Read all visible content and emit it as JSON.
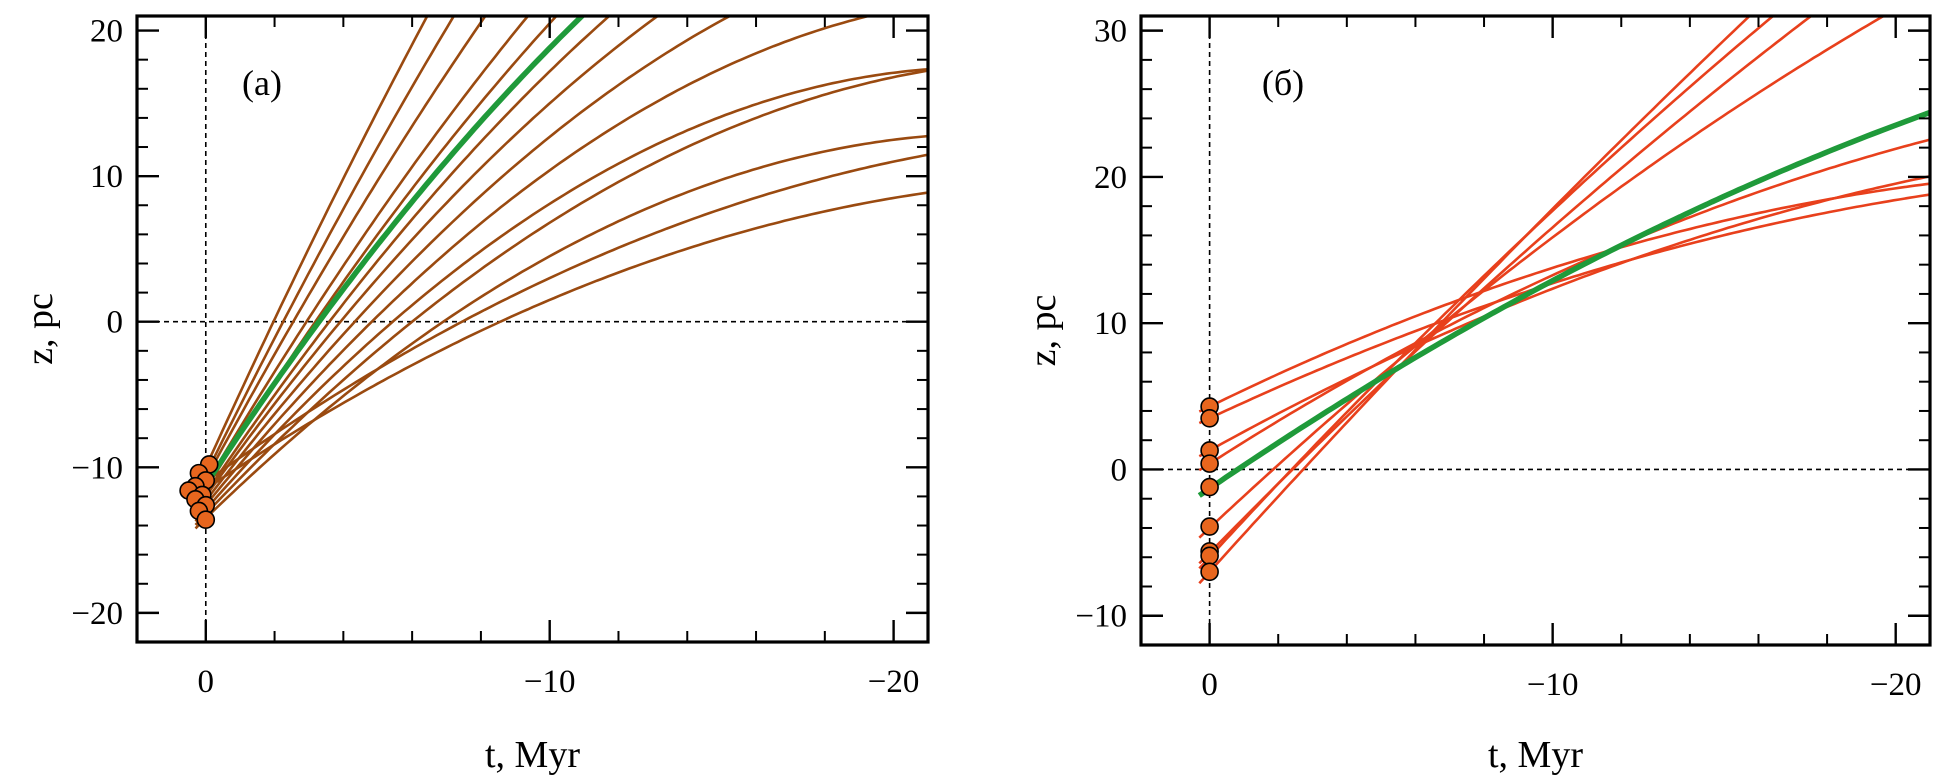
{
  "chart_data": [
    {
      "type": "line",
      "panel_label": "(а)",
      "xlabel": "t, Myr",
      "ylabel": "z, pc",
      "xlim": [
        2,
        -21
      ],
      "ylim": [
        -22,
        21
      ],
      "x_ticks": [
        0,
        -10,
        -20
      ],
      "x_tick_labels": [
        "0",
        "−10",
        "−20"
      ],
      "y_ticks": [
        -20,
        -10,
        0,
        10,
        20
      ],
      "y_tick_labels": [
        "−20",
        "−10",
        "0",
        "10",
        "20"
      ],
      "reference_lines": {
        "x": 0,
        "y": 0
      },
      "colors": {
        "tracks": "#9a4a10",
        "highlight": "#1f9a3a",
        "points": "#e8661e"
      },
      "highlight": {
        "z0": -11.2,
        "slope": 3.6,
        "curv": 0.06
      },
      "tracks": [
        {
          "z0": -10.0,
          "slope": 5.2,
          "curv": 0.06
        },
        {
          "z0": -10.5,
          "slope": 4.8,
          "curv": 0.06
        },
        {
          "z0": -10.8,
          "slope": 4.4,
          "curv": 0.06
        },
        {
          "z0": -11.2,
          "slope": 4.0,
          "curv": 0.06
        },
        {
          "z0": -11.5,
          "slope": 3.8,
          "curv": 0.06
        },
        {
          "z0": -11.8,
          "slope": 3.5,
          "curv": 0.06
        },
        {
          "z0": -12.0,
          "slope": 3.3,
          "curv": 0.06
        },
        {
          "z0": -12.3,
          "slope": 3.1,
          "curv": 0.06
        },
        {
          "z0": -12.6,
          "slope": 2.9,
          "curv": 0.06
        },
        {
          "z0": -12.9,
          "slope": 2.7,
          "curv": 0.06
        },
        {
          "z0": -13.2,
          "slope": 2.5,
          "curv": 0.05
        },
        {
          "z0": -13.5,
          "slope": 2.3,
          "curv": 0.05
        },
        {
          "z0": -11.0,
          "slope": 1.7,
          "curv": 0.03
        },
        {
          "z0": -11.5,
          "slope": 1.6,
          "curv": 0.03
        }
      ],
      "points": [
        {
          "x": -0.1,
          "y": -9.8
        },
        {
          "x": 0.2,
          "y": -10.4
        },
        {
          "x": 0.0,
          "y": -10.9
        },
        {
          "x": 0.3,
          "y": -11.3
        },
        {
          "x": 0.5,
          "y": -11.6
        },
        {
          "x": 0.1,
          "y": -11.9
        },
        {
          "x": 0.3,
          "y": -12.2
        },
        {
          "x": 0.0,
          "y": -12.6
        },
        {
          "x": 0.2,
          "y": -13.0
        },
        {
          "x": 0.0,
          "y": -13.6
        }
      ]
    },
    {
      "type": "line",
      "panel_label": "(б)",
      "xlabel": "t, Myr",
      "ylabel": "z, pc",
      "xlim": [
        2,
        -21
      ],
      "ylim": [
        -12,
        31
      ],
      "x_ticks": [
        0,
        -10,
        -20
      ],
      "x_tick_labels": [
        "0",
        "−10",
        "−20"
      ],
      "y_ticks": [
        -10,
        0,
        10,
        20,
        30
      ],
      "y_tick_labels": [
        "−10",
        "0",
        "10",
        "20",
        "30"
      ],
      "reference_lines": {
        "x": 0,
        "y": 0
      },
      "colors": {
        "tracks": "#e8401c",
        "highlight": "#1f9a3a",
        "points": "#e8661e"
      },
      "highlight": {
        "z0": -1.3,
        "slope": 1.6,
        "curv": 0.0179
      },
      "tracks": [
        {
          "z0": 4.3,
          "slope": 1.15,
          "curv": 0.0202
        },
        {
          "z0": 3.5,
          "slope": 1.1,
          "curv": 0.0177
        },
        {
          "z0": 1.3,
          "slope": 1.3,
          "curv": 0.0194
        },
        {
          "z0": 0.4,
          "slope": 1.5,
          "curv": 0.0212
        },
        {
          "z0": -4.0,
          "slope": 2.2,
          "curv": 0.0213
        },
        {
          "z0": -5.7,
          "slope": 2.4,
          "curv": 0.0175
        },
        {
          "z0": -6.0,
          "slope": 2.55,
          "curv": 0.0181
        },
        {
          "z0": -7.0,
          "slope": 2.6,
          "curv": 0.0118
        }
      ],
      "points": [
        {
          "x": 0.0,
          "y": 4.3
        },
        {
          "x": 0.0,
          "y": 3.5
        },
        {
          "x": 0.0,
          "y": 1.3
        },
        {
          "x": 0.0,
          "y": 0.4
        },
        {
          "x": 0.0,
          "y": -1.2
        },
        {
          "x": 0.0,
          "y": -3.9
        },
        {
          "x": 0.0,
          "y": -5.6
        },
        {
          "x": 0.0,
          "y": -5.9
        },
        {
          "x": 0.0,
          "y": -7.0
        }
      ]
    }
  ]
}
